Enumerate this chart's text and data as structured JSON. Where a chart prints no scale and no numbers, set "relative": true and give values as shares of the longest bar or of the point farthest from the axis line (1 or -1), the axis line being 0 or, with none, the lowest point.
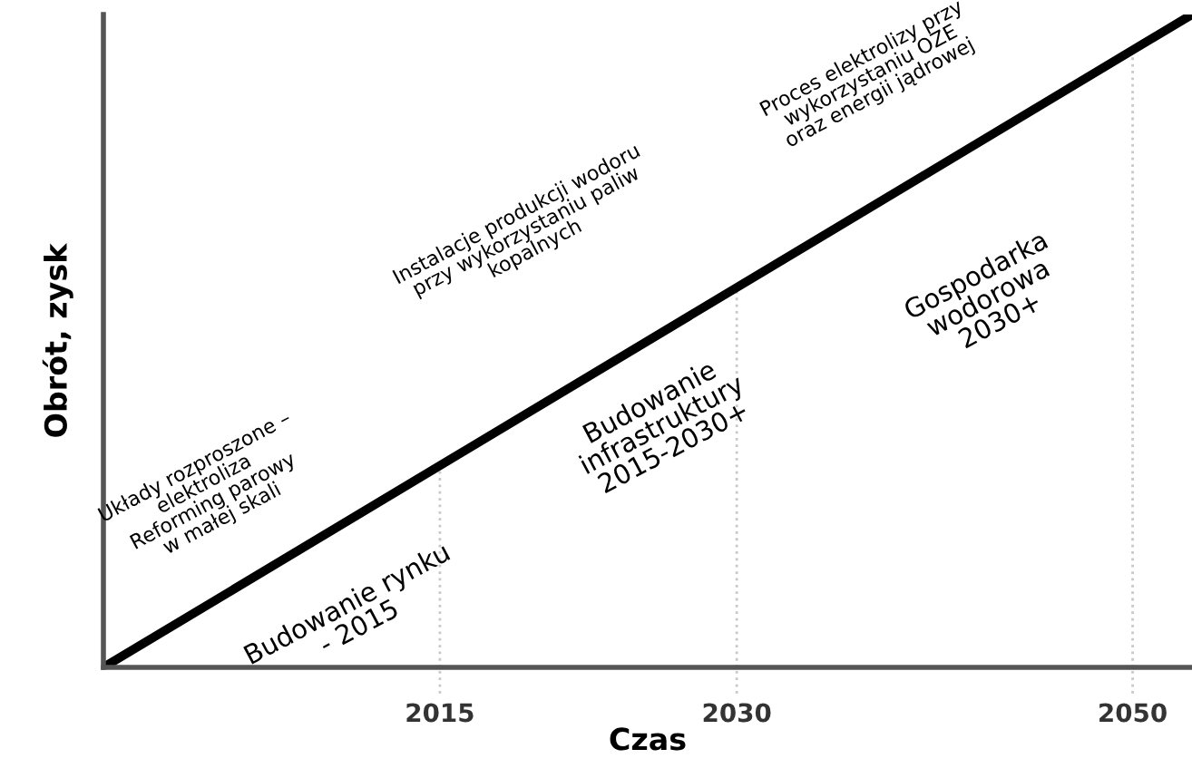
{
  "chart_data": {
    "type": "line",
    "relative": true,
    "xlabel": "Czas",
    "ylabel": "Obrót, zysk",
    "x": [
      1998,
      2053
    ],
    "xlim": [
      1998,
      2053
    ],
    "xticks": [
      2015,
      2030,
      2050
    ],
    "series": [
      {
        "color": "#000000",
        "values": [
          0,
          1
        ]
      }
    ],
    "ref_lines": [
      {
        "axis": "x",
        "value": 2015,
        "color": "#c8c8c8",
        "line_style": "dotted"
      },
      {
        "axis": "x",
        "value": 2030,
        "color": "#c8c8c8",
        "line_style": "dotted"
      },
      {
        "axis": "x",
        "value": 2050,
        "color": "#c8c8c8",
        "line_style": "dotted"
      }
    ],
    "annotations": [
      "Układy rozproszone –\nelektroliza\nReforming parowy\nw małej skali",
      "Budowanie rynku\n- 2015",
      "Instalacje produkcji wodoru\nprzy wykorzystaniu paliw\nkopalnych",
      "Budowanie\ninfrastruktury\n2015-2030+",
      "Proces elektrolizy przy\nwykorzystaniu OZE\noraz energii jądrowej",
      "Gospodarka\nwodorowa\n2030+"
    ],
    "grid": false,
    "legend": false
  }
}
